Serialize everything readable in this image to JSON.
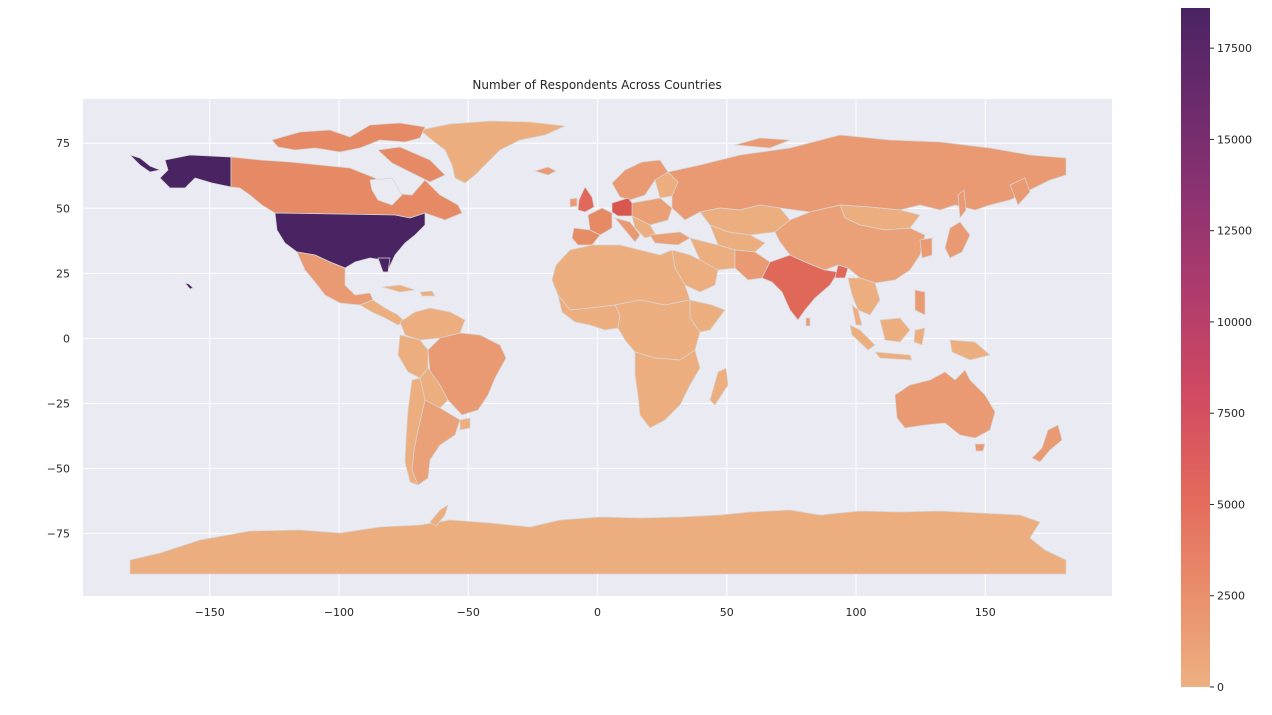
{
  "chart_data": {
    "type": "choropleth",
    "title": "Number of Respondents Across Countries",
    "xlabel": "",
    "ylabel": "",
    "xlim": [
      -199,
      199
    ],
    "ylim": [
      -99,
      92
    ],
    "x_ticks": [
      -150,
      -100,
      -50,
      0,
      50,
      100,
      150
    ],
    "y_ticks": [
      75,
      50,
      25,
      0,
      -25,
      -50,
      -75
    ],
    "grid": true,
    "background": "#eaeaf2",
    "grid_color": "#ffffff",
    "colormap": "flare",
    "colorbar": {
      "min": 0,
      "max": 18600,
      "ticks": [
        0,
        2500,
        5000,
        7500,
        10000,
        12500,
        15000,
        17500
      ],
      "colors": [
        "#edb081",
        "#e98d6b",
        "#e3685c",
        "#d14a61",
        "#b13c6c",
        "#8f3371",
        "#6c2b6d",
        "#4a2363"
      ]
    },
    "regions": [
      {
        "name": "United States",
        "value": 18600
      },
      {
        "name": "India",
        "value": 6500
      },
      {
        "name": "Germany",
        "value": 5500
      },
      {
        "name": "United Kingdom",
        "value": 4500
      },
      {
        "name": "Canada",
        "value": 2900
      },
      {
        "name": "France",
        "value": 2600
      },
      {
        "name": "Brazil",
        "value": 2200
      },
      {
        "name": "Spain",
        "value": 1800
      },
      {
        "name": "Australia",
        "value": 1900
      },
      {
        "name": "Russia",
        "value": 1500
      },
      {
        "name": "Italy",
        "value": 1400
      },
      {
        "name": "China",
        "value": 800
      },
      {
        "name": "Mexico",
        "value": 700
      },
      {
        "name": "Japan",
        "value": 700
      },
      {
        "name": "Argentina",
        "value": 600
      },
      {
        "name": "Greenland",
        "value": 0
      },
      {
        "name": "Antarctica",
        "value": 0
      }
    ]
  }
}
